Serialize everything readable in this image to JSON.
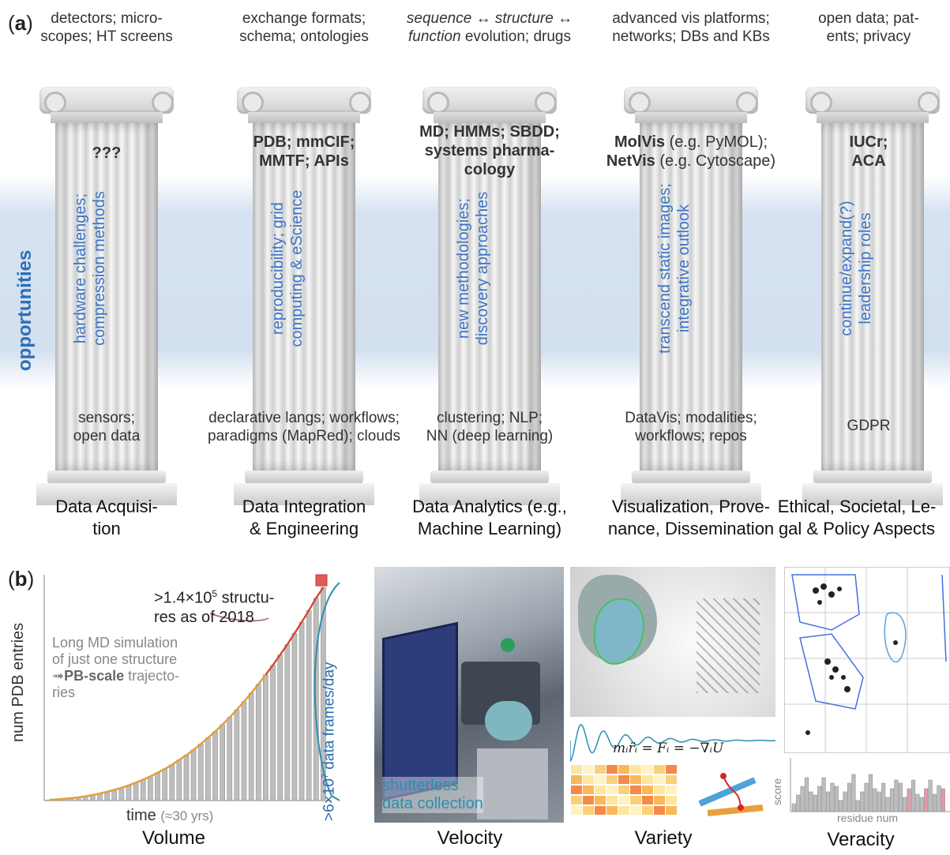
{
  "panel_a": {
    "label_prefix": "(",
    "label_letter": "a",
    "label_suffix": ")",
    "band_label": "opportunities",
    "pillars": [
      {
        "top": "detectors; micro-\nscopes; HT screens",
        "bold": "???",
        "vertical": "hardware challenges;\ncompression methods",
        "bottom": "sensors;\nopen data",
        "title": "Data Acquisi-\ntion"
      },
      {
        "top": "exchange formats;\nschema; ontologies",
        "bold": "PDB; mmCIF;\nMMTF; APIs",
        "vertical": "reproducibility; grid\ncomputing & eScience",
        "bottom": "declarative langs; workflows;\nparadigms (MapRed); clouds",
        "title": "Data Integration\n& Engineering"
      },
      {
        "top_a": "sequence",
        "top_b": " ↔ ",
        "top_c": "structure",
        "top_d": " ↔",
        "top_e": "function",
        "top_f": " evolution; drugs",
        "bold": "MD; HMMs; SBDD;\nsystems pharma-\ncology",
        "vertical": "new methodologies;\ndiscovery approaches",
        "bottom": "clustering; NLP;\nNN (deep learning)",
        "title": "Data Analytics (e.g.,\nMachine Learning)"
      },
      {
        "top": "advanced vis platforms;\nnetworks; DBs and KBs",
        "bold1": "MolVis",
        "plain1": " (e.g. PyMOL);",
        "bold2": "NetVis",
        "plain2": " (e.g. Cytoscape)",
        "vertical": "transcend static images;\nintegrative outlook",
        "bottom": "DataVis; modalities;\nworkflows; repos",
        "title": "Visualization, Prove-\nnance, Dissemination"
      },
      {
        "top": "open data; pat-\nents; privacy",
        "bold": "IUCr;\nACA",
        "vertical": "continue/expand(?)\nleadership roles",
        "bottom": "GDPR",
        "title": "Ethical, Societal, Le-\ngal & Policy Aspects"
      }
    ]
  },
  "panel_b": {
    "label_prefix": "(",
    "label_letter": "b",
    "label_suffix": ")",
    "volume": {
      "title": "Volume",
      "ylabel": "num PDB entries",
      "xlabel": "time",
      "xlabel_note": "(≈30 yrs)",
      "annotation_top_1": ">1.4×10",
      "annotation_top_sup": "5",
      "annotation_top_2": " structu-",
      "annotation_top_3": "res as of 2018",
      "md_note_1": "Long MD simulation",
      "md_note_2": "of just one structure",
      "md_note_arrow": "➟",
      "md_note_bold": "PB-scale",
      "md_note_3": " trajecto-",
      "md_note_4": "ries",
      "frames_1": ">6×10",
      "frames_sup": "7",
      "frames_2": " data frames/day"
    },
    "velocity": {
      "title": "Velocity",
      "caption": "shutterless\ndata collection"
    },
    "variety": {
      "title": "Variety",
      "equation": "mᵢr̈ᵢ = Fᵢ = −∇ᵢU"
    },
    "veracity": {
      "title": "Veracity",
      "score_label": "score",
      "xlabel": "residue num"
    }
  },
  "chart_data": {
    "type": "bar",
    "title": "Volume",
    "xlabel": "time (≈30 yrs)",
    "ylabel": "num PDB entries",
    "values": [
      0.3,
      0.5,
      0.8,
      1.1,
      1.5,
      2,
      2.6,
      3.3,
      4.1,
      5,
      6,
      7.1,
      8.4,
      9.8,
      11.3,
      13,
      14.8,
      16.8,
      19,
      21.3,
      23.8,
      26.5,
      29.4,
      32.4,
      35.6,
      39,
      42.6,
      46.4,
      50.4,
      54.6,
      59,
      63.5,
      68.3,
      73.2,
      78.4,
      83.7,
      89.2,
      95,
      100
    ],
    "colors": {
      "bars": "#bdbdbd",
      "line": "#e0a040",
      "trend": "#d33b3b"
    }
  },
  "colors": {
    "accent_blue": "#3b74c8",
    "opportunities_blue": "#2c6fb6",
    "teal": "#2a8fb0"
  }
}
